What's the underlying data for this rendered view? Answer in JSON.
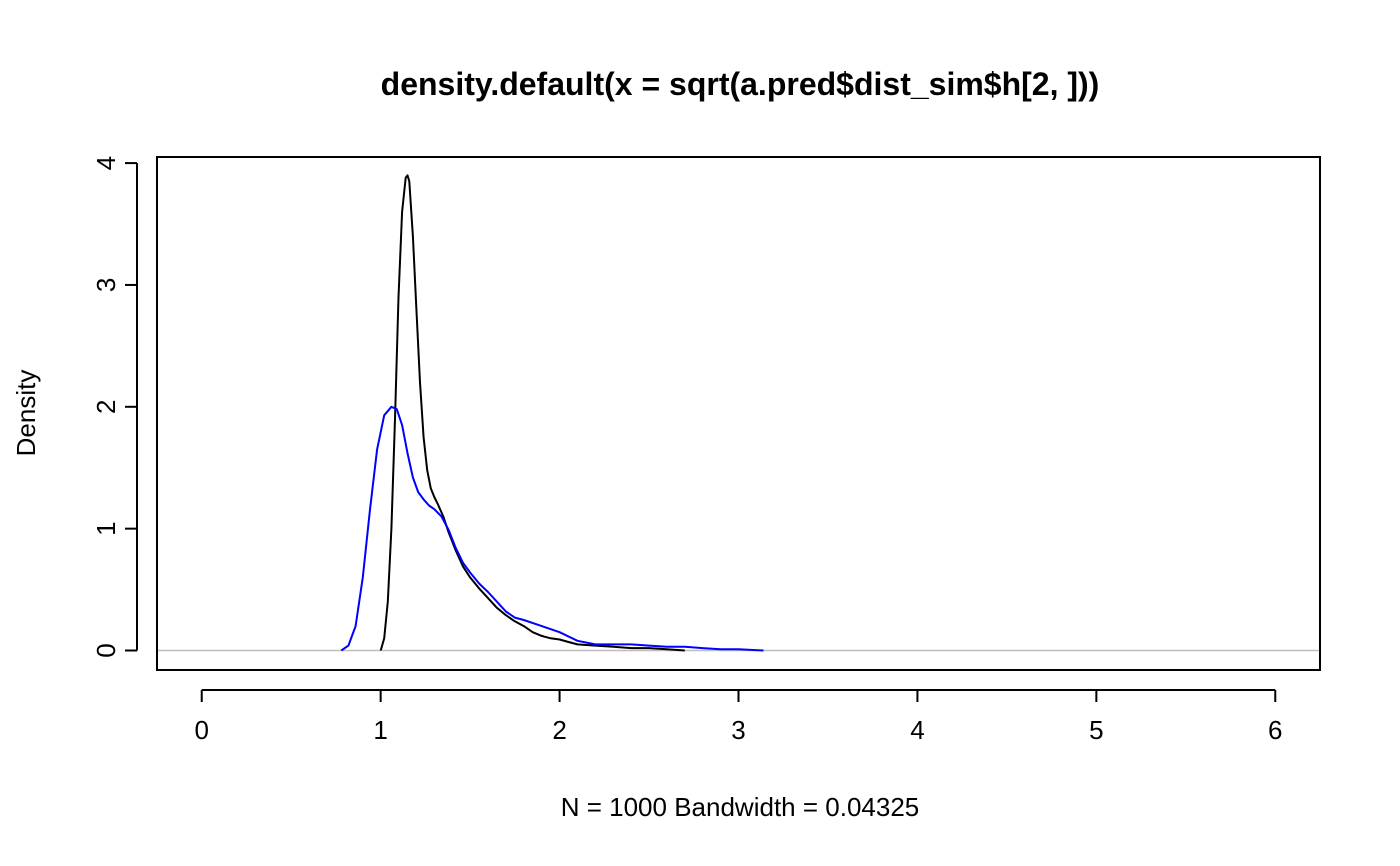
{
  "chart_data": {
    "type": "line",
    "title": "density.default(x = sqrt(a.pred$dist_sim$h[2, ]))",
    "xlabel": "N = 1000   Bandwidth = 0.04325",
    "ylabel": "Density",
    "xlim": [
      -0.25,
      6.25
    ],
    "ylim": [
      -0.16,
      4.05
    ],
    "x_ticks": [
      0,
      1,
      2,
      3,
      4,
      5,
      6
    ],
    "x_tick_labels": [
      "0",
      "1",
      "2",
      "3",
      "4",
      "5",
      "6"
    ],
    "y_ticks": [
      0,
      1,
      2,
      3,
      4
    ],
    "y_tick_labels": [
      "0",
      "1",
      "2",
      "3",
      "4"
    ],
    "zero_line_color": "#bebebe",
    "series": [
      {
        "color": "#000000",
        "x": [
          1.0,
          1.02,
          1.04,
          1.06,
          1.08,
          1.1,
          1.12,
          1.14,
          1.15,
          1.16,
          1.18,
          1.2,
          1.22,
          1.24,
          1.26,
          1.28,
          1.3,
          1.32,
          1.35,
          1.38,
          1.42,
          1.46,
          1.5,
          1.55,
          1.6,
          1.65,
          1.7,
          1.75,
          1.8,
          1.85,
          1.9,
          1.95,
          2.0,
          2.05,
          2.1,
          2.2,
          2.3,
          2.4,
          2.5,
          2.6,
          2.7
        ],
        "y": [
          0.0,
          0.1,
          0.4,
          1.0,
          1.9,
          2.9,
          3.6,
          3.88,
          3.9,
          3.85,
          3.4,
          2.8,
          2.2,
          1.75,
          1.48,
          1.33,
          1.26,
          1.2,
          1.1,
          0.97,
          0.82,
          0.69,
          0.6,
          0.51,
          0.43,
          0.35,
          0.29,
          0.24,
          0.2,
          0.15,
          0.12,
          0.1,
          0.09,
          0.07,
          0.05,
          0.04,
          0.03,
          0.02,
          0.02,
          0.01,
          0.0
        ]
      },
      {
        "color": "#0000ff",
        "x": [
          0.78,
          0.82,
          0.86,
          0.9,
          0.94,
          0.98,
          1.02,
          1.06,
          1.09,
          1.12,
          1.15,
          1.18,
          1.21,
          1.24,
          1.27,
          1.3,
          1.34,
          1.38,
          1.42,
          1.46,
          1.5,
          1.55,
          1.6,
          1.65,
          1.7,
          1.75,
          1.8,
          1.9,
          2.0,
          2.1,
          2.2,
          2.3,
          2.4,
          2.5,
          2.6,
          2.7,
          2.8,
          2.9,
          3.0,
          3.14
        ],
        "y": [
          0.0,
          0.04,
          0.2,
          0.6,
          1.15,
          1.65,
          1.93,
          2.0,
          1.98,
          1.85,
          1.62,
          1.42,
          1.3,
          1.24,
          1.19,
          1.16,
          1.1,
          0.99,
          0.84,
          0.72,
          0.64,
          0.55,
          0.48,
          0.4,
          0.32,
          0.27,
          0.25,
          0.2,
          0.15,
          0.08,
          0.05,
          0.05,
          0.05,
          0.04,
          0.03,
          0.03,
          0.02,
          0.01,
          0.01,
          0.0
        ]
      }
    ]
  }
}
